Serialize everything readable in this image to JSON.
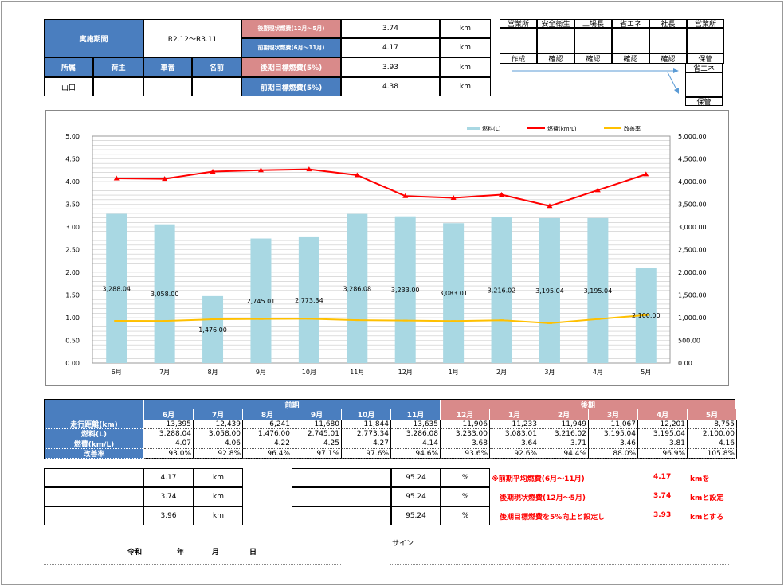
{
  "header": {
    "period_label": "実施期間",
    "period_value": "R2.12～R3.11",
    "cols": [
      "所属",
      "荷主",
      "車番",
      "名前"
    ],
    "affiliation": "山口",
    "metrics": [
      {
        "label": "後期現状燃費(12月～5月)",
        "value": "3.74",
        "unit": "km"
      },
      {
        "label": "前期現状燃費(6月～11月)",
        "value": "4.17",
        "unit": "km"
      },
      {
        "label": "後期目標燃費(5%)",
        "value": "3.93",
        "unit": "km"
      },
      {
        "label": "前期目標燃費(5%)",
        "value": "4.38",
        "unit": "km"
      }
    ]
  },
  "approval": {
    "headers": [
      "営業所",
      "安全衛生",
      "工場長",
      "省エネ",
      "社長",
      "営業所"
    ],
    "footers": [
      "作成",
      "確認",
      "確認",
      "確認",
      "確認",
      "保管"
    ],
    "side_header": "省エネ",
    "side_footer": "保管"
  },
  "colors": {
    "blue": "#4a7ebf",
    "pink": "#d98a8a",
    "bar": "#a9d8e3",
    "line": "#ff0000",
    "rate": "#ffc000"
  },
  "chart_data": {
    "type": "bar+line",
    "categories": [
      "6月",
      "7月",
      "8月",
      "9月",
      "10月",
      "11月",
      "12月",
      "1月",
      "2月",
      "3月",
      "4月",
      "5月"
    ],
    "legend": [
      "燃料(L)",
      "燃費(km/L)",
      "改善率"
    ],
    "legend_position": "top-right",
    "y_left": {
      "ticks": [
        "0.00",
        "0.50",
        "1.00",
        "1.50",
        "2.00",
        "2.50",
        "3.00",
        "3.50",
        "4.00",
        "4.50",
        "5.00"
      ],
      "range": [
        0,
        5
      ]
    },
    "y_right": {
      "ticks": [
        "0.00",
        "500.00",
        "1,000.00",
        "1,500.00",
        "2,000.00",
        "2,500.00",
        "3,000.00",
        "3,500.00",
        "4,000.00",
        "4,500.00",
        "5,000.00"
      ],
      "range": [
        0,
        5000
      ]
    },
    "series": [
      {
        "name": "燃料(L)",
        "axis": "right",
        "type": "bar",
        "values": [
          3288.04,
          3058.0,
          1476.0,
          2745.01,
          2773.34,
          3286.08,
          3233.0,
          3083.01,
          3216.02,
          3195.04,
          3195.04,
          2100.0
        ],
        "labels": [
          "3,288.04",
          "3,058.00",
          "1,476.00",
          "2,745.01",
          "2,773.34",
          "3,286.08",
          "3,233.00",
          "3,083.01",
          "3,216.02",
          "3,195.04",
          "3,195.04",
          "2,100.00"
        ]
      },
      {
        "name": "燃費(km/L)",
        "axis": "left",
        "type": "line",
        "values": [
          4.07,
          4.06,
          4.22,
          4.25,
          4.27,
          4.14,
          3.68,
          3.64,
          3.71,
          3.46,
          3.81,
          4.16
        ]
      },
      {
        "name": "改善率",
        "axis": "left",
        "type": "line",
        "values": [
          0.93,
          0.928,
          0.964,
          0.971,
          0.976,
          0.946,
          0.936,
          0.926,
          0.944,
          0.88,
          0.969,
          1.058
        ]
      }
    ]
  },
  "table": {
    "period1": "前期",
    "period2": "後期",
    "months": [
      "6月",
      "7月",
      "8月",
      "9月",
      "10月",
      "11月",
      "12月",
      "1月",
      "2月",
      "3月",
      "4月",
      "5月"
    ],
    "rows": [
      {
        "label": "走行距離(km)",
        "values": [
          "13,395",
          "12,439",
          "6,241",
          "11,680",
          "11,844",
          "13,635",
          "11,906",
          "11,233",
          "11,949",
          "11,067",
          "12,201",
          "8,755"
        ]
      },
      {
        "label": "燃料(L)",
        "values": [
          "3,288.04",
          "3,058.00",
          "1,476.00",
          "2,745.01",
          "2,773.34",
          "3,286.08",
          "3,233.00",
          "3,083.01",
          "3,216.02",
          "3,195.04",
          "3,195.04",
          "2,100.00"
        ]
      },
      {
        "label": "燃費(km/L)",
        "values": [
          "4.07",
          "4.06",
          "4.22",
          "4.25",
          "4.27",
          "4.14",
          "3.68",
          "3.64",
          "3.71",
          "3.46",
          "3.81",
          "4.16"
        ]
      },
      {
        "label": "改善率",
        "values": [
          "93.0%",
          "92.8%",
          "96.4%",
          "97.1%",
          "97.6%",
          "94.6%",
          "93.6%",
          "92.6%",
          "94.4%",
          "88.0%",
          "96.9%",
          "105.8%"
        ]
      }
    ]
  },
  "bottom": {
    "left": [
      {
        "value": "4.17",
        "unit": "km"
      },
      {
        "value": "3.74",
        "unit": "km"
      },
      {
        "value": "3.96",
        "unit": "km"
      }
    ],
    "right": [
      {
        "value": "95.24",
        "unit": "%"
      },
      {
        "value": "95.24",
        "unit": "%"
      },
      {
        "value": "95.24",
        "unit": "%"
      }
    ],
    "notes": [
      {
        "text": "※前期平均燃費(6月～11月)",
        "value": "4.17",
        "suffix": "kmを"
      },
      {
        "text": "後期現状燃費(12月～5月)",
        "value": "3.74",
        "suffix": "kmと設定"
      },
      {
        "text": "後期目標燃費を5%向上と設定し",
        "value": "3.93",
        "suffix": "kmとする"
      }
    ]
  },
  "footer": {
    "era": "令和",
    "year": "年",
    "month": "月",
    "day": "日",
    "sign": "サイン"
  }
}
